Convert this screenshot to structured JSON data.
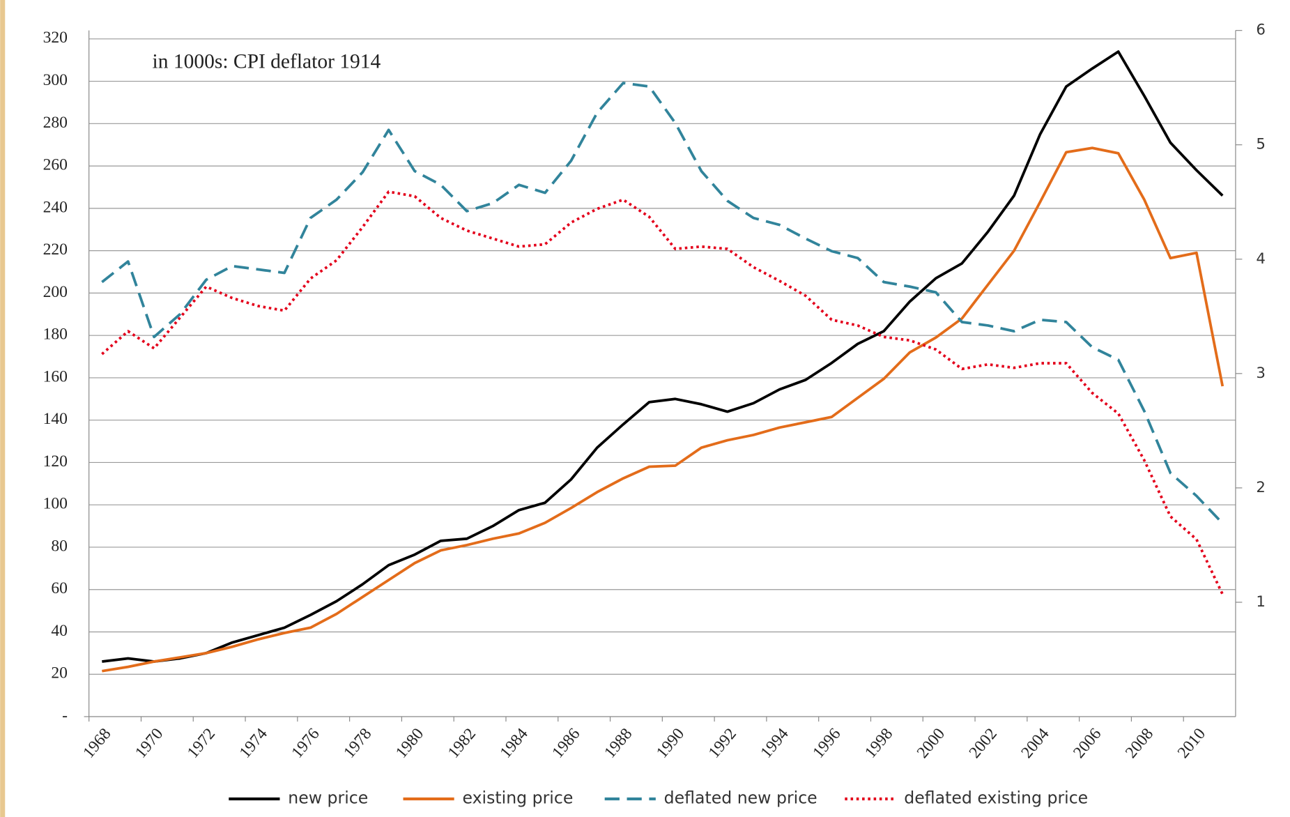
{
  "chart_data": {
    "type": "line",
    "annotation": "in 1000s: CPI deflator 1914",
    "x": [
      1968,
      1969,
      1970,
      1971,
      1972,
      1973,
      1974,
      1975,
      1976,
      1977,
      1978,
      1979,
      1980,
      1981,
      1982,
      1983,
      1984,
      1985,
      1986,
      1987,
      1988,
      1989,
      1990,
      1991,
      1992,
      1993,
      1994,
      1995,
      1996,
      1997,
      1998,
      1999,
      2000,
      2001,
      2002,
      2003,
      2004,
      2005,
      2006,
      2007,
      2008,
      2009,
      2010,
      2011
    ],
    "xlim": [
      1967.5,
      2011.5
    ],
    "xticks": [
      1968,
      1970,
      1972,
      1974,
      1976,
      1978,
      1980,
      1982,
      1984,
      1986,
      1988,
      1990,
      1992,
      1994,
      1996,
      1998,
      2000,
      2002,
      2004,
      2006,
      2008,
      2010
    ],
    "ylim": [
      0,
      324
    ],
    "yticks": [
      {
        "value": 0,
        "label": "-"
      },
      20,
      40,
      60,
      80,
      100,
      120,
      140,
      160,
      180,
      200,
      220,
      240,
      260,
      280,
      300,
      320
    ],
    "y2lim": [
      0,
      6
    ],
    "y2ticks": [
      1,
      2,
      3,
      4,
      5,
      6
    ],
    "grid": true,
    "legend": "bottom",
    "series": [
      {
        "name": "new price",
        "color": "#000000",
        "dash": "solid",
        "values": [
          26,
          27.5,
          26,
          27.5,
          30,
          35,
          38.5,
          42,
          48,
          54.5,
          62.5,
          71.5,
          76.5,
          83,
          84,
          90,
          97.5,
          101,
          112,
          127,
          138,
          148.5,
          150,
          147.5,
          144,
          148,
          154.5,
          159,
          167,
          176,
          182,
          196,
          207,
          214,
          229,
          246,
          275,
          297.5,
          306,
          314,
          293,
          271,
          258,
          246
        ]
      },
      {
        "name": "existing price",
        "color": "#e36c1a",
        "dash": "solid",
        "values": [
          21.5,
          23.5,
          26,
          28,
          30,
          33,
          36.5,
          39.5,
          42,
          48.5,
          56.5,
          64.5,
          72.5,
          78.5,
          81,
          84,
          86.5,
          91.5,
          98.5,
          106,
          112.5,
          118,
          118.5,
          127,
          130.5,
          133,
          136.5,
          139,
          141.5,
          150.5,
          159.5,
          172,
          179,
          188,
          204,
          220,
          243,
          266.5,
          268.5,
          266,
          244,
          216.5,
          219,
          156
        ]
      },
      {
        "name": "deflated new price",
        "color": "#31849b",
        "dash": "dashed",
        "axis": "y2",
        "values": [
          3.8,
          3.98,
          3.32,
          3.52,
          3.82,
          3.94,
          3.91,
          3.88,
          4.36,
          4.52,
          4.76,
          5.13,
          4.77,
          4.65,
          4.42,
          4.49,
          4.65,
          4.58,
          4.86,
          5.28,
          5.54,
          5.51,
          5.19,
          4.77,
          4.51,
          4.36,
          4.3,
          4.18,
          4.07,
          4.01,
          3.8,
          3.76,
          3.71,
          3.45,
          3.42,
          3.37,
          3.47,
          3.45,
          3.23,
          3.12,
          2.67,
          2.13,
          1.93,
          1.69
        ]
      },
      {
        "name": "deflated existing price",
        "color": "#e3001b",
        "dash": "dotted",
        "axis": "y2",
        "values": [
          3.17,
          3.37,
          3.22,
          3.49,
          3.76,
          3.66,
          3.59,
          3.55,
          3.83,
          3.99,
          4.28,
          4.59,
          4.55,
          4.36,
          4.25,
          4.18,
          4.11,
          4.13,
          4.32,
          4.44,
          4.52,
          4.37,
          4.09,
          4.11,
          4.09,
          3.93,
          3.81,
          3.68,
          3.47,
          3.42,
          3.32,
          3.29,
          3.21,
          3.04,
          3.08,
          3.05,
          3.09,
          3.09,
          2.83,
          2.65,
          2.24,
          1.75,
          1.55,
          1.07
        ]
      }
    ]
  }
}
